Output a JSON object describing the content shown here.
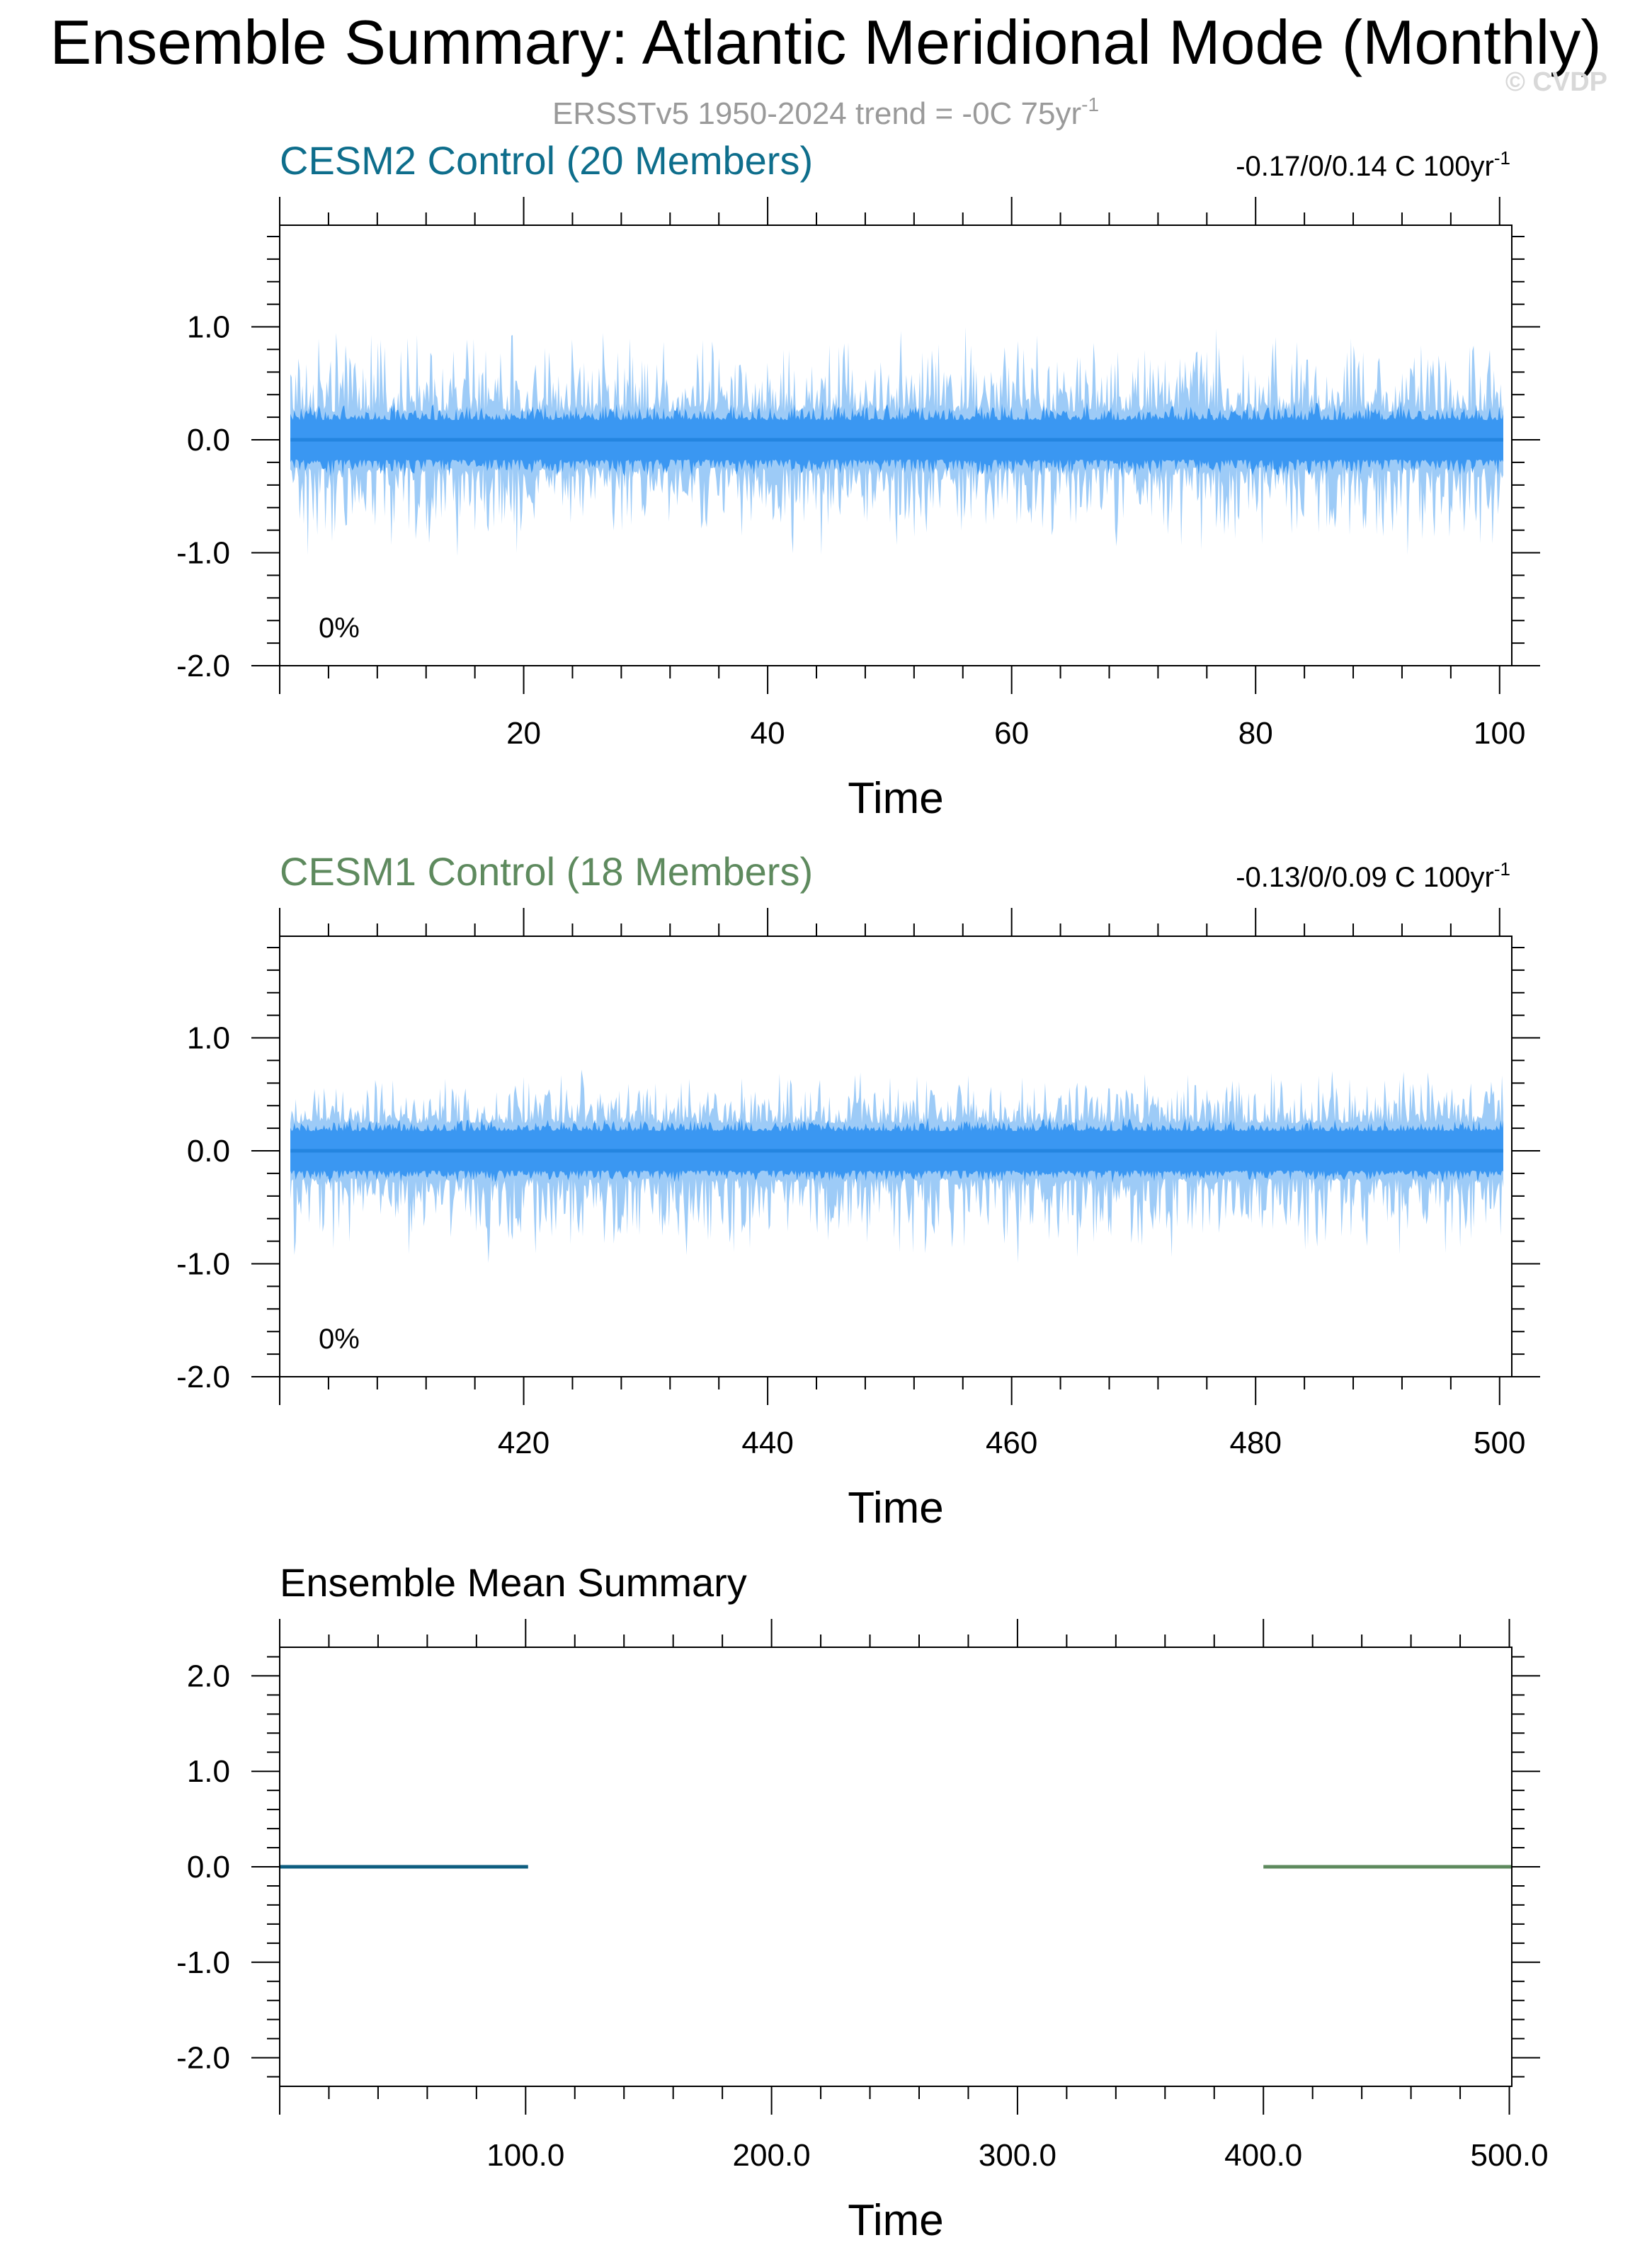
{
  "header": {
    "title": "Ensemble Summary: Atlantic Meridional Mode (Monthly)",
    "subtitle": "ERSSTv5 1950-2024 trend = -0C 75yr",
    "subtitle_superscript": "-1",
    "watermark": "© CVDP"
  },
  "colors": {
    "cesm2": "#0e6e8c",
    "cesm1": "#5e8a5e",
    "envelope_outer": "#9dcbf7",
    "envelope_inner": "#3a97f2",
    "mean_line": "#2485e0",
    "zero_line": "#9a9a9a",
    "text": "#000000"
  },
  "chart_data": [
    {
      "type": "area",
      "panel_title": "CESM2 Control (20 Members)",
      "stat_label": "-0.17/0/0.14 C 100yr",
      "stat_superscript": "-1",
      "percent_label": "0%",
      "xlabel": "Time",
      "xlim": [
        0,
        101
      ],
      "xticks": [
        20,
        40,
        60,
        80,
        100
      ],
      "ylim": [
        -2.0,
        1.9
      ],
      "yticks": [
        1.0,
        0.0,
        -1.0,
        -2.0
      ],
      "ytick_labels": [
        "1.0",
        "0.0",
        "-1.0",
        "-2.0"
      ],
      "series": [
        {
          "role": "outer-envelope",
          "min": -1.05,
          "max": 1.05
        },
        {
          "role": "inner-envelope",
          "min": -0.35,
          "max": 0.35
        },
        {
          "role": "ensemble-mean",
          "value": 0.0
        }
      ]
    },
    {
      "type": "area",
      "panel_title": "CESM1 Control (18 Members)",
      "stat_label": "-0.13/0/0.09 C 100yr",
      "stat_superscript": "-1",
      "percent_label": "0%",
      "xlabel": "Time",
      "xlim": [
        400,
        501
      ],
      "xticks": [
        420,
        440,
        460,
        480,
        500
      ],
      "ylim": [
        -2.0,
        1.9
      ],
      "yticks": [
        1.0,
        0.0,
        -1.0,
        -2.0
      ],
      "ytick_labels": [
        "1.0",
        "0.0",
        "-1.0",
        "-2.0"
      ],
      "series": [
        {
          "role": "outer-envelope",
          "min": -1.0,
          "max": 0.75
        },
        {
          "role": "inner-envelope",
          "min": -0.3,
          "max": 0.3
        },
        {
          "role": "ensemble-mean",
          "value": 0.0
        }
      ]
    },
    {
      "type": "line",
      "panel_title": "Ensemble Mean Summary",
      "xlabel": "Time",
      "xlim": [
        0,
        501
      ],
      "xticks": [
        100,
        200,
        300,
        400,
        500
      ],
      "xtick_labels": [
        "100.0",
        "200.0",
        "300.0",
        "400.0",
        "500.0"
      ],
      "ylim": [
        -2.3,
        2.3
      ],
      "yticks": [
        2.0,
        1.0,
        0.0,
        -1.0,
        -2.0
      ],
      "ytick_labels": [
        "2.0",
        "1.0",
        "0.0",
        "-1.0",
        "-2.0"
      ],
      "series": [
        {
          "color": "#0e5e80",
          "x": [
            0,
            101
          ],
          "y": [
            0.0,
            0.0
          ]
        },
        {
          "color": "#5e8a5e",
          "x": [
            400,
            501
          ],
          "y": [
            0.0,
            0.0
          ]
        }
      ]
    }
  ]
}
